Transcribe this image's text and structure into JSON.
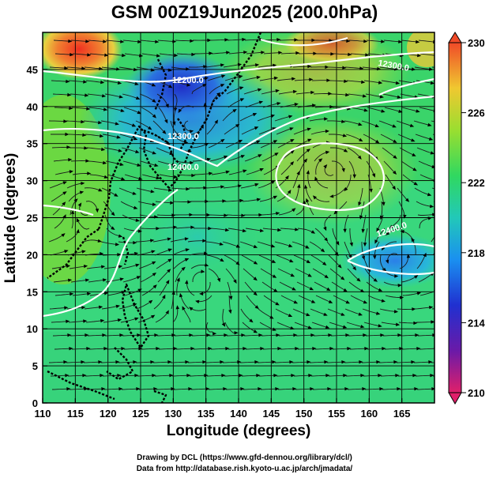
{
  "title": "GSM 00Z19Jun2025 (200.0hPa)",
  "xaxis": {
    "label": "Longitude (degrees)",
    "ticks": [
      "110",
      "115",
      "120",
      "125",
      "130",
      "135",
      "140",
      "145",
      "150",
      "155",
      "160",
      "165"
    ]
  },
  "yaxis": {
    "label": "Latitude  (degrees)",
    "ticks": [
      "0",
      "5",
      "10",
      "15",
      "20",
      "25",
      "30",
      "35",
      "40",
      "45"
    ]
  },
  "colorbar": {
    "ticks": [
      "230",
      "226",
      "222",
      "218",
      "214",
      "210"
    ],
    "colors": [
      "#e0206a",
      "#4030c8",
      "#1a7cf0",
      "#22c8c8",
      "#30d860",
      "#9ade30",
      "#f0c830",
      "#f05a28"
    ]
  },
  "contours": {
    "labels": [
      "12200.0",
      "12300.0",
      "12400.0",
      "12300.0",
      "12400.0"
    ]
  },
  "credits": {
    "line1": "Drawing by DCL (https://www.gfd-dennou.org/library/dcl/)",
    "line2": "Data from http://database.rish.kyoto-u.ac.jp/arch/jmadata/"
  },
  "map": {
    "lon_range": [
      110,
      170
    ],
    "lat_range": [
      0,
      50
    ],
    "cbar_range": [
      210,
      230
    ]
  }
}
